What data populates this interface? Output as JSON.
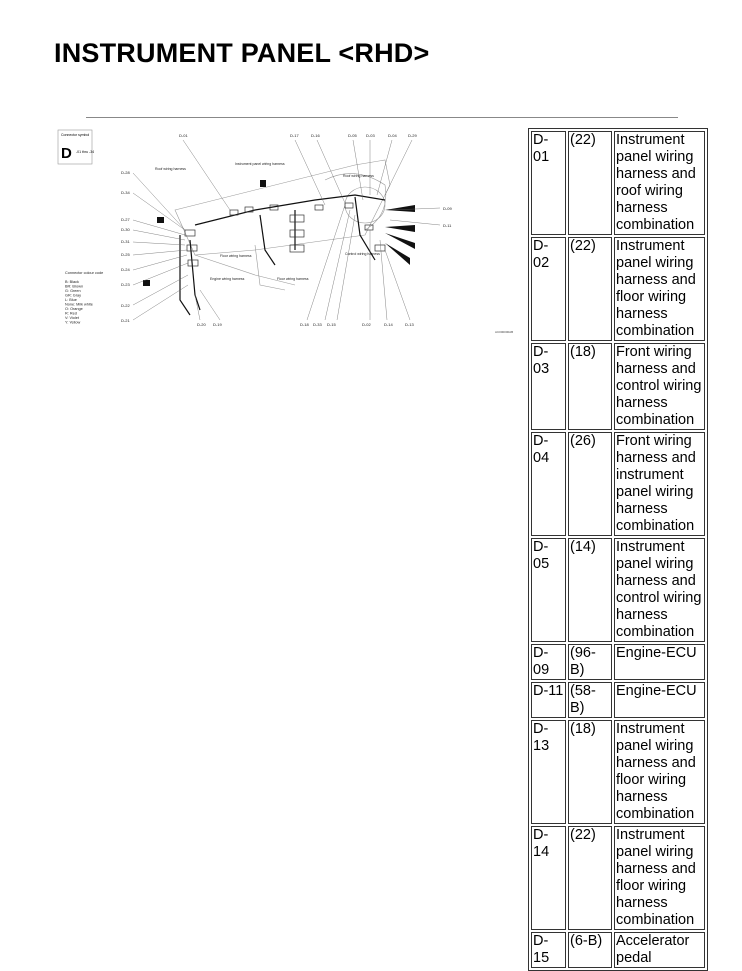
{
  "title": "INSTRUMENT PANEL <RHD>",
  "diagram": {
    "legend_box": {
      "caption": "Connector symbol",
      "letter": "D",
      "range": "-01 thru -34"
    },
    "harness_labels": [
      "Roof wiring harness",
      "Instrument panel wiring harness",
      "Roof wiring harness",
      "Floor wiring harness",
      "Control wiring harness",
      "Floor wiring harness",
      "Engine wiring harness"
    ],
    "connector_labels_top": [
      "D-01",
      "D-17",
      "D-16",
      "D-05",
      "D-03",
      "D-04",
      "D-29"
    ],
    "connector_labels_left": [
      "D-28",
      "D-34",
      "D-27",
      "D-30",
      "D-31",
      "D-25",
      "D-24",
      "D-23",
      "D-22",
      "D-21"
    ],
    "connector_labels_bottom": [
      "D-20",
      "D-19",
      "D-18",
      "D-33",
      "D-15",
      "D-02",
      "D-14",
      "D-13"
    ],
    "connector_labels_right": [
      "D-09",
      "D-11"
    ],
    "colour_code": [
      "Connector colour code",
      "B: Black",
      "BR: Brown",
      "G: Green",
      "GR: Gray",
      "L: Blue",
      "None: Milk white",
      "O: Orange",
      "R: Red",
      "V: Violet",
      "Y: Yellow"
    ],
    "figure_id": "AC000000AB"
  },
  "connectors": [
    {
      "id": "D-01",
      "pins": "(22)",
      "desc": "Instrument panel wiring harness and roof wiring harness combination"
    },
    {
      "id": "D-02",
      "pins": "(22)",
      "desc": "Instrument panel wiring harness and floor wiring harness combination"
    },
    {
      "id": "D-03",
      "pins": "(18)",
      "desc": "Front wiring harness and control wiring harness combination"
    },
    {
      "id": "D-04",
      "pins": "(26)",
      "desc": "Front wiring harness and instrument panel wiring harness combination"
    },
    {
      "id": "D-05",
      "pins": "(14)",
      "desc": "Instrument panel wiring harness and control wiring harness combination"
    },
    {
      "id": "D-09",
      "pins": "(96-B)",
      "desc": "Engine-ECU"
    },
    {
      "id": "D-11",
      "pins": "(58-B)",
      "desc": "Engine-ECU"
    },
    {
      "id": "D-13",
      "pins": "(18)",
      "desc": "Instrument panel wiring harness and floor wiring harness combination"
    },
    {
      "id": "D-14",
      "pins": "(22)",
      "desc": "Instrument panel wiring harness and floor wiring harness combination"
    },
    {
      "id": "D-15",
      "pins": "(6-B)",
      "desc": "Accelerator pedal"
    }
  ]
}
